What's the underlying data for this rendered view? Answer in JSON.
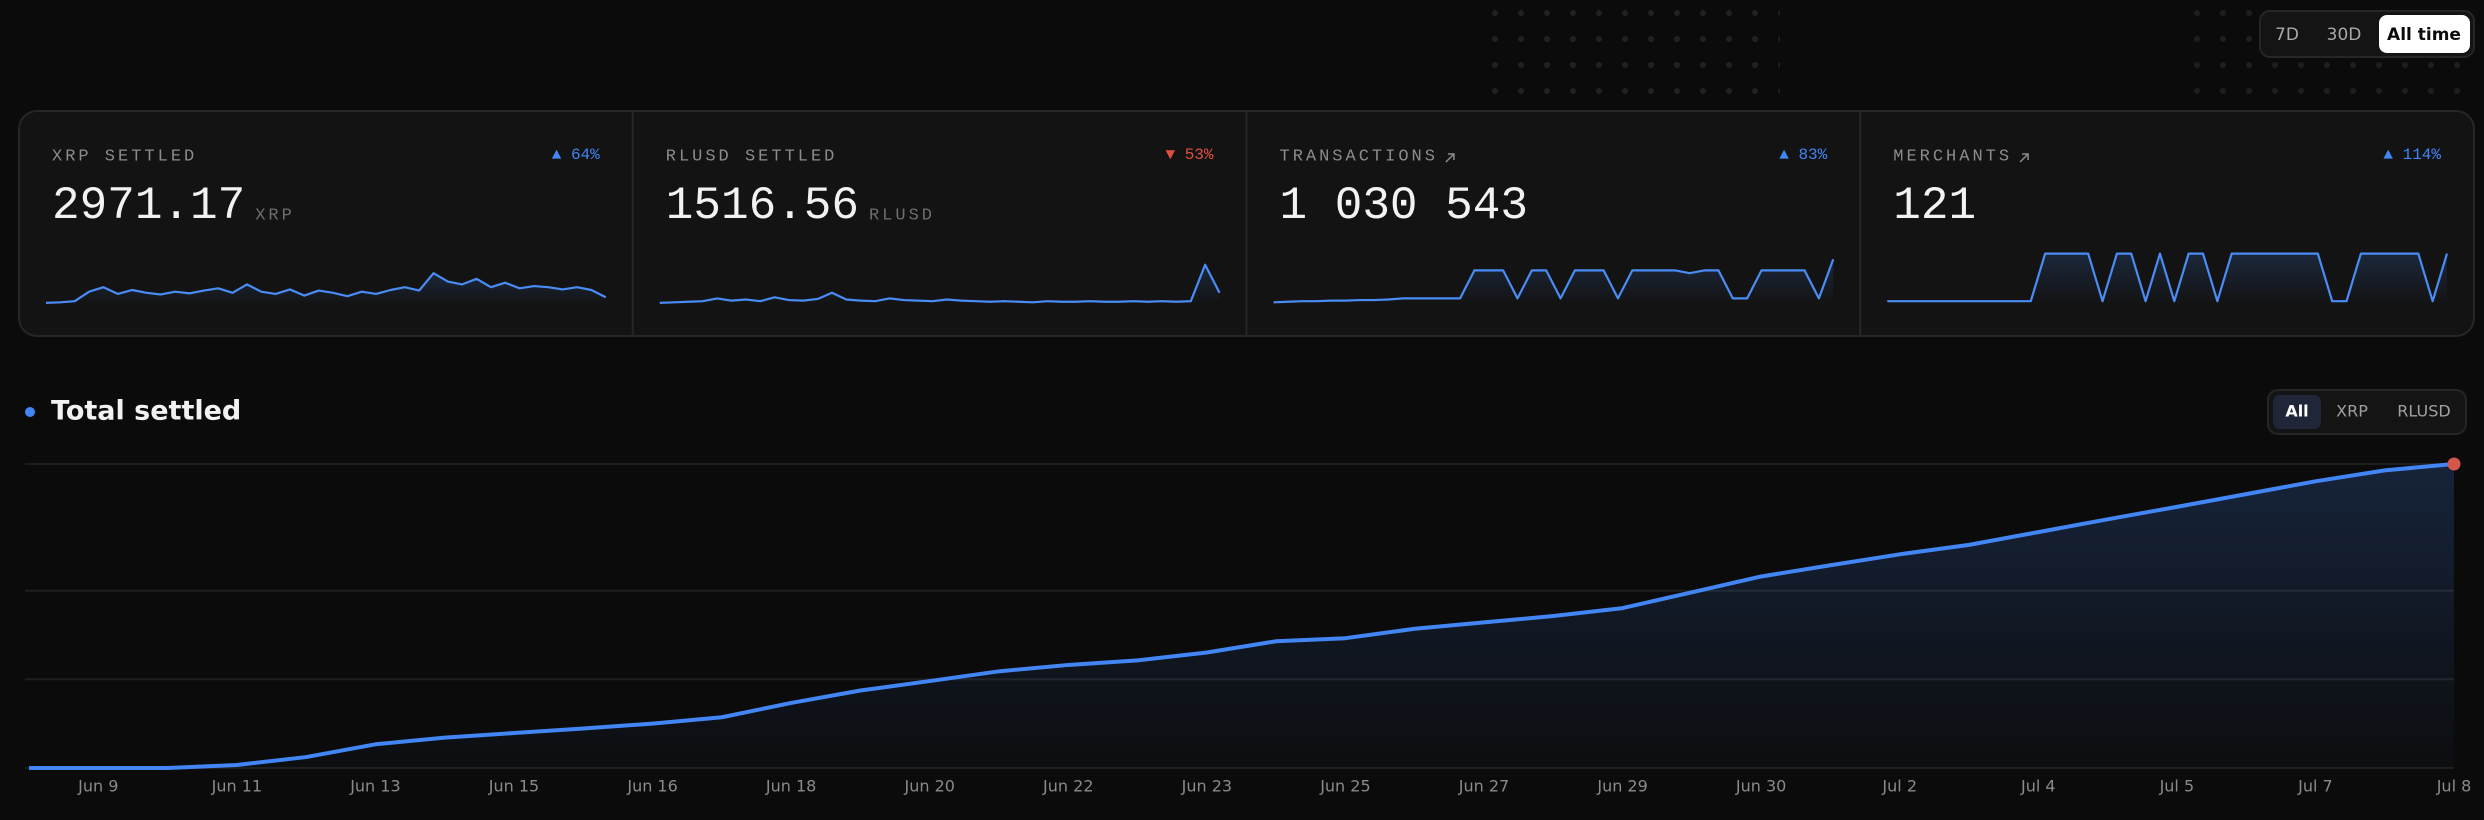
{
  "time_ranges": [
    {
      "label": "7D",
      "active": false
    },
    {
      "label": "30D",
      "active": false
    },
    {
      "label": "All time",
      "active": true
    }
  ],
  "stats": [
    {
      "label": "XRP SETTLED",
      "change": "▲ 64%",
      "direction": "up",
      "value": "2971.17",
      "unit": "XRP",
      "link": false,
      "sparkline": [
        2,
        3,
        5,
        22,
        30,
        18,
        25,
        20,
        17,
        22,
        19,
        24,
        28,
        20,
        35,
        22,
        18,
        26,
        15,
        24,
        20,
        14,
        22,
        18,
        25,
        30,
        24,
        55,
        40,
        35,
        45,
        30,
        38,
        28,
        32,
        30,
        26,
        30,
        25,
        12
      ]
    },
    {
      "label": "RLUSD SETTLED",
      "change": "▼ 53%",
      "direction": "down",
      "value": "1516.56",
      "unit": "RLUSD",
      "link": false,
      "sparkline": [
        2,
        3,
        4,
        5,
        10,
        6,
        8,
        5,
        12,
        7,
        6,
        9,
        20,
        8,
        6,
        5,
        10,
        7,
        6,
        5,
        8,
        6,
        5,
        4,
        5,
        4,
        3,
        5,
        4,
        4,
        5,
        4,
        4,
        5,
        4,
        5,
        4,
        5,
        70,
        20
      ]
    },
    {
      "label": "TRANSACTIONS",
      "change": "▲ 83%",
      "direction": "up",
      "value": "1 030 543",
      "link": true,
      "sparkline": [
        3,
        4,
        5,
        5,
        6,
        6,
        7,
        7,
        8,
        10,
        10,
        10,
        10,
        10,
        60,
        60,
        60,
        10,
        60,
        60,
        10,
        60,
        60,
        60,
        10,
        60,
        60,
        60,
        60,
        55,
        60,
        60,
        10,
        10,
        60,
        60,
        60,
        60,
        10,
        80
      ]
    },
    {
      "label": "MERCHANTS",
      "change": "▲ 114%",
      "direction": "up",
      "value": "121",
      "link": true,
      "sparkline": [
        5,
        5,
        5,
        5,
        5,
        5,
        5,
        5,
        5,
        5,
        5,
        90,
        90,
        90,
        90,
        5,
        90,
        90,
        5,
        90,
        5,
        90,
        90,
        5,
        90,
        90,
        90,
        90,
        90,
        90,
        90,
        5,
        5,
        90,
        90,
        90,
        90,
        90,
        5,
        90
      ]
    }
  ],
  "sparkline_range": [
    0,
    100
  ],
  "filters": [
    {
      "label": "All",
      "active": true
    },
    {
      "label": "XRP",
      "active": false
    },
    {
      "label": "RLUSD",
      "active": false
    }
  ],
  "chart_data": {
    "type": "area",
    "title": "Total settled",
    "color": "#4285f4",
    "categories": [
      null,
      "Jun 9",
      null,
      "Jun 11",
      null,
      "Jun 13",
      null,
      "Jun 15",
      null,
      "Jun 16",
      null,
      "Jun 18",
      null,
      "Jun 20",
      null,
      "Jun 22",
      null,
      "Jun 23",
      null,
      "Jun 25",
      null,
      "Jun 27",
      null,
      "Jun 29",
      null,
      "Jun 30",
      null,
      "Jul 2",
      null,
      "Jul 4",
      null,
      "Jul 5",
      null,
      "Jul 7",
      null,
      "Jul 8"
    ],
    "values": [
      0,
      0,
      0,
      1,
      3.6,
      7.8,
      10,
      11.5,
      13,
      14.6,
      16.7,
      21.4,
      25.5,
      28.6,
      31.8,
      33.9,
      35.4,
      38,
      41.7,
      42.7,
      45.8,
      47.9,
      50,
      52.6,
      57.8,
      63,
      66.7,
      70.3,
      73.4,
      77.6,
      81.8,
      85.9,
      90.1,
      94.3,
      97.9,
      100
    ],
    "ylim": [
      0,
      100
    ],
    "grid_values": [
      0,
      29.2,
      58.3,
      100
    ]
  }
}
